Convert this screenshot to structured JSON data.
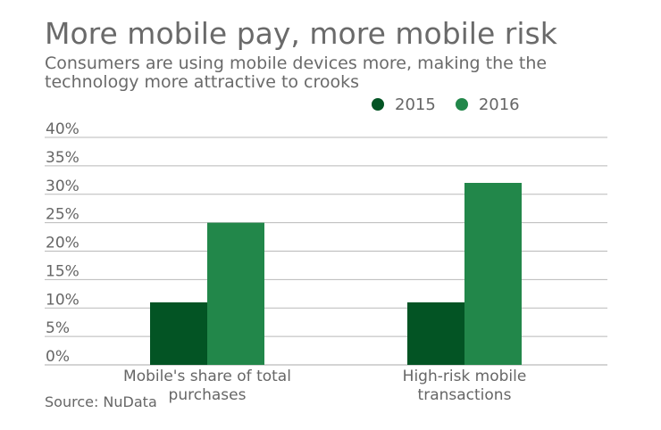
{
  "header": {
    "title": "More mobile pay, more mobile risk",
    "subtitle": "Consumers are using mobile devices more, making the the technology more attractive to crooks"
  },
  "footer": {
    "source": "Source: NuData"
  },
  "colors": {
    "series_2015": "#035424",
    "series_2016": "#22874a",
    "grid": "#b9b9b9",
    "text": "#666666"
  },
  "chart_data": {
    "type": "bar",
    "title": "More mobile pay, more mobile risk",
    "categories": [
      "Mobile's share of total purchases",
      "High-risk mobile transactions"
    ],
    "category_lines": [
      [
        "Mobile's share of total",
        "purchases"
      ],
      [
        "High-risk mobile",
        "transactions"
      ]
    ],
    "series": [
      {
        "name": "2015",
        "values": [
          11,
          11
        ],
        "color": "#035424"
      },
      {
        "name": "2016",
        "values": [
          25,
          32
        ],
        "color": "#22874a"
      }
    ],
    "ylim": [
      0,
      40
    ],
    "yticks": [
      0,
      5,
      10,
      15,
      20,
      25,
      30,
      35,
      40
    ],
    "ytick_labels": [
      "0%",
      "5%",
      "10%",
      "15%",
      "20%",
      "25%",
      "30%",
      "35%",
      "40%"
    ],
    "xlabel": "",
    "ylabel": "",
    "grid": true,
    "legend_position": "top-right"
  }
}
